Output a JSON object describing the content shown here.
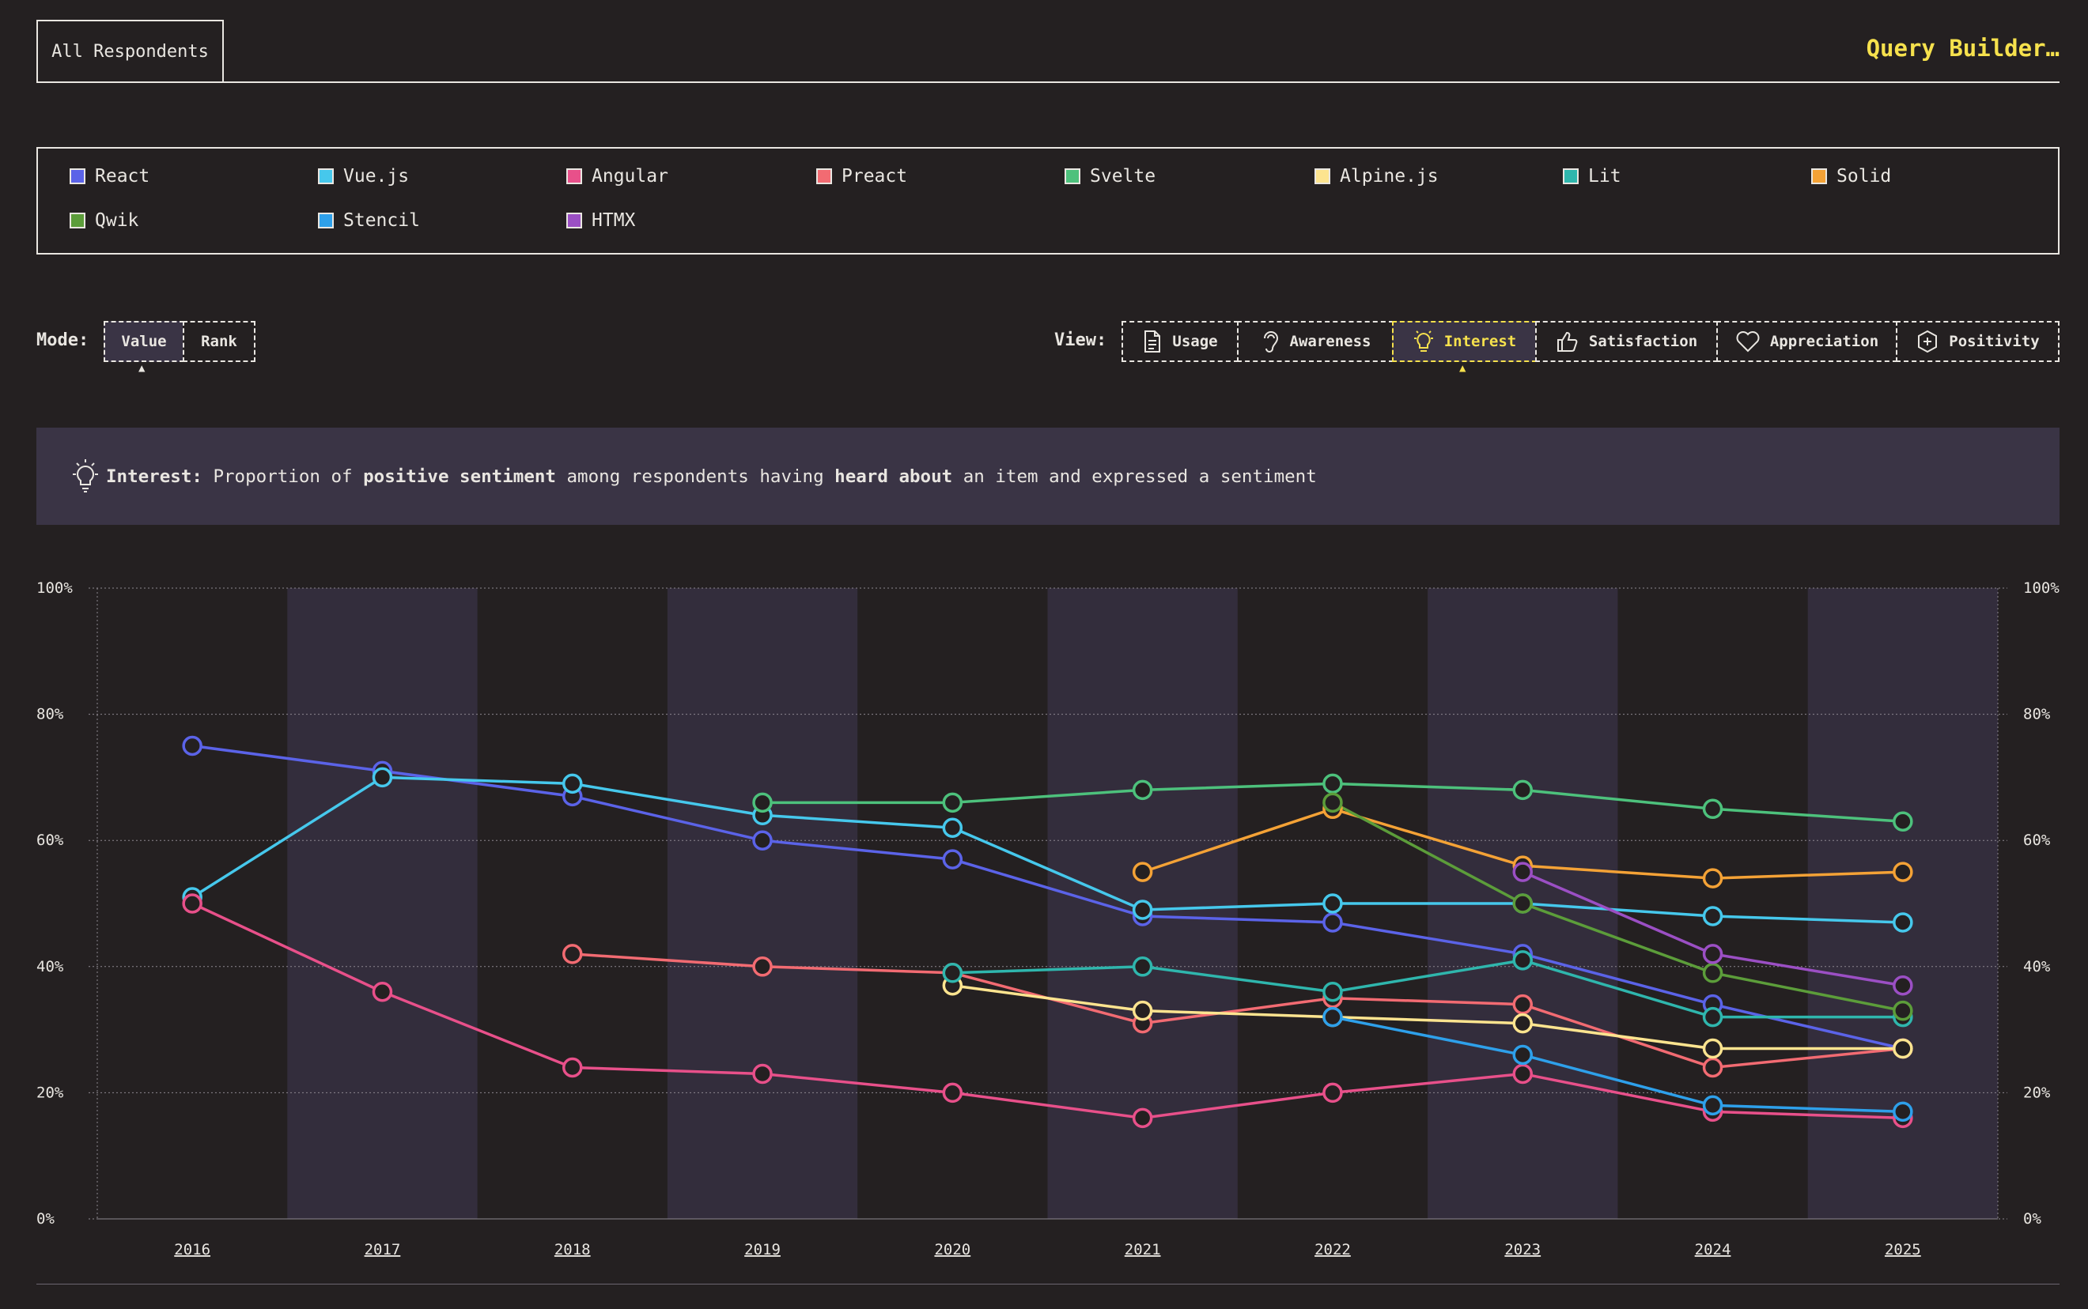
{
  "tabs": {
    "active": "All Respondents"
  },
  "query_builder": "Query Builder…",
  "legend": [
    {
      "name": "React",
      "color": "#5b63e8"
    },
    {
      "name": "Vue.js",
      "color": "#46c8ec"
    },
    {
      "name": "Angular",
      "color": "#e8508a"
    },
    {
      "name": "Preact",
      "color": "#f26b72"
    },
    {
      "name": "Svelte",
      "color": "#4dc17c"
    },
    {
      "name": "Alpine.js",
      "color": "#fde48f"
    },
    {
      "name": "Lit",
      "color": "#2fb6ad"
    },
    {
      "name": "Solid",
      "color": "#f4a236"
    },
    {
      "name": "Qwik",
      "color": "#5c9d3a"
    },
    {
      "name": "Stencil",
      "color": "#2ea0ea"
    },
    {
      "name": "HTMX",
      "color": "#9b4fc4"
    }
  ],
  "mode": {
    "label": "Mode:",
    "options": [
      "Value",
      "Rank"
    ],
    "selected": "Value"
  },
  "view": {
    "label": "View:",
    "options": [
      {
        "label": "Usage",
        "icon": "document-icon"
      },
      {
        "label": "Awareness",
        "icon": "ear-icon"
      },
      {
        "label": "Interest",
        "icon": "lightbulb-icon"
      },
      {
        "label": "Satisfaction",
        "icon": "thumbs-up-icon"
      },
      {
        "label": "Appreciation",
        "icon": "heart-icon"
      },
      {
        "label": "Positivity",
        "icon": "plus-hexagon-icon"
      }
    ],
    "selected": "Interest"
  },
  "info": {
    "title": "Interest:",
    "t1": "Proportion of",
    "b1": "positive sentiment",
    "t2": "among respondents having",
    "b2": "heard about",
    "t3": "an item and expressed a sentiment"
  },
  "chart_data": {
    "type": "line",
    "x": [
      "2016",
      "2017",
      "2018",
      "2019",
      "2020",
      "2021",
      "2022",
      "2023",
      "2024",
      "2025"
    ],
    "ylim": [
      0,
      100
    ],
    "yticks": [
      "0%",
      "20%",
      "40%",
      "60%",
      "80%",
      "100%"
    ],
    "grid": true,
    "series": [
      {
        "name": "React",
        "values": [
          75,
          71,
          67,
          60,
          57,
          48,
          47,
          42,
          34,
          27
        ]
      },
      {
        "name": "Vue.js",
        "values": [
          51,
          70,
          69,
          64,
          62,
          49,
          50,
          50,
          48,
          47
        ]
      },
      {
        "name": "Angular",
        "values": [
          50,
          36,
          24,
          23,
          20,
          16,
          20,
          23,
          17,
          16
        ]
      },
      {
        "name": "Preact",
        "values": [
          null,
          null,
          42,
          40,
          39,
          31,
          35,
          34,
          24,
          27
        ]
      },
      {
        "name": "Svelte",
        "values": [
          null,
          null,
          null,
          66,
          66,
          68,
          69,
          68,
          65,
          63
        ]
      },
      {
        "name": "Alpine.js",
        "values": [
          null,
          null,
          null,
          null,
          37,
          33,
          32,
          31,
          27,
          27
        ]
      },
      {
        "name": "Lit",
        "values": [
          null,
          null,
          null,
          null,
          39,
          40,
          36,
          41,
          32,
          32
        ]
      },
      {
        "name": "Solid",
        "values": [
          null,
          null,
          null,
          null,
          null,
          55,
          65,
          56,
          54,
          55
        ]
      },
      {
        "name": "Qwik",
        "values": [
          null,
          null,
          null,
          null,
          null,
          null,
          66,
          50,
          39,
          33
        ]
      },
      {
        "name": "Stencil",
        "values": [
          null,
          null,
          null,
          null,
          null,
          null,
          32,
          26,
          18,
          17
        ]
      },
      {
        "name": "HTMX",
        "values": [
          null,
          null,
          null,
          null,
          null,
          null,
          null,
          55,
          42,
          37
        ]
      }
    ]
  }
}
